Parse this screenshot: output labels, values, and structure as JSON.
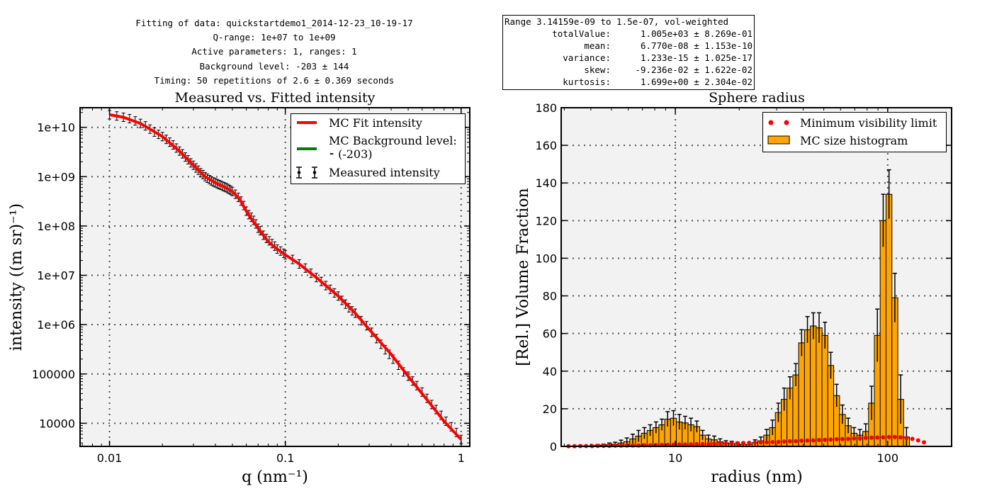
{
  "header": {
    "lines": [
      "Fitting of data: quickstartdemo1_2014-12-23_10-19-17",
      "Q-range: 1e+07 to 1e+09",
      "Active parameters: 1, ranges: 1",
      "Background level: -203 ± 144",
      "Timing: 50 repetitions of 2.6 ± 0.369 seconds"
    ]
  },
  "stats_box": {
    "title": "Range 3.14159e-09 to 1.5e-07, vol-weighted",
    "rows": [
      {
        "label": "totalValue:",
        "value": "1.005e+03 ± 8.269e-01"
      },
      {
        "label": "mean:",
        "value": "6.770e-08 ± 1.153e-10"
      },
      {
        "label": "variance:",
        "value": "1.233e-15 ± 1.025e-17"
      },
      {
        "label": "skew:",
        "value": "-9.236e-02 ± 1.622e-02"
      },
      {
        "label": "kurtosis:",
        "value": "1.699e+00 ± 2.304e-02"
      }
    ]
  },
  "colors": {
    "plot_bg": "#f2f2f2",
    "fit_line": "#ff0000",
    "background_line": "#008000",
    "bar_fill": "#ffa500",
    "visibility_dots": "#ff0000",
    "grid": "#555555"
  },
  "chart_data": [
    {
      "type": "line",
      "title": "Measured vs. Fitted intensity",
      "xlabel": "q (nm⁻¹)",
      "ylabel": "intensity ((m sr)⁻¹)",
      "xscale": "log",
      "yscale": "log",
      "xlim": [
        0.0068,
        1.12
      ],
      "ylim": [
        3400,
        25000000000
      ],
      "xticks": [
        0.01,
        0.1,
        1
      ],
      "xtick_labels": [
        "0.01",
        "0.1",
        "1"
      ],
      "yticks": [
        10000,
        100000,
        1000000,
        10000000,
        100000000,
        1000000000,
        10000000000
      ],
      "ytick_labels": [
        "10000",
        "100000",
        "1e+06",
        "1e+07",
        "1e+08",
        "1e+09",
        "1e+10"
      ],
      "grid": true,
      "legend_position": "top-right",
      "series": [
        {
          "name": "MC Fit intensity",
          "style": "line",
          "x": [
            0.01,
            0.012,
            0.015,
            0.02,
            0.025,
            0.03,
            0.035,
            0.04,
            0.045,
            0.05,
            0.055,
            0.06,
            0.065,
            0.07,
            0.075,
            0.08,
            0.09,
            0.1,
            0.12,
            0.15,
            0.2,
            0.25,
            0.3,
            0.4,
            0.5,
            0.6,
            0.7,
            0.8,
            0.9,
            1.0
          ],
          "y": [
            18000000000,
            16000000000,
            12000000000,
            6500000000,
            3300000000,
            1700000000,
            1000000000,
            750000000,
            620000000,
            500000000,
            350000000,
            200000000,
            130000000,
            90000000,
            65000000,
            48000000,
            34000000,
            26000000,
            17000000,
            9000000,
            3800000,
            1700000,
            800000,
            250000,
            90000,
            40000,
            20000,
            11000,
            7000,
            4700
          ]
        },
        {
          "name": "MC Background level: ⁃ (-203)",
          "style": "line",
          "x": [],
          "y": []
        },
        {
          "name": "Measured intensity",
          "style": "errorbar",
          "x": [
            0.01,
            0.011,
            0.012,
            0.013,
            0.014,
            0.015,
            0.016,
            0.017,
            0.018,
            0.019,
            0.02,
            0.021,
            0.022,
            0.023,
            0.024,
            0.025,
            0.026,
            0.027,
            0.028,
            0.029,
            0.03,
            0.031,
            0.032,
            0.033,
            0.034,
            0.035,
            0.036,
            0.037,
            0.038,
            0.039,
            0.04,
            0.041,
            0.042,
            0.043,
            0.044,
            0.045,
            0.046,
            0.047,
            0.048,
            0.049,
            0.05,
            0.052,
            0.054,
            0.056,
            0.058,
            0.06,
            0.062,
            0.064,
            0.066,
            0.068,
            0.07,
            0.072,
            0.075,
            0.078,
            0.081,
            0.084,
            0.087,
            0.09,
            0.094,
            0.098,
            0.1,
            0.11,
            0.12,
            0.13,
            0.14,
            0.15,
            0.16,
            0.17,
            0.18,
            0.19,
            0.2,
            0.21,
            0.22,
            0.23,
            0.24,
            0.25,
            0.27,
            0.29,
            0.31,
            0.33,
            0.35,
            0.37,
            0.39,
            0.41,
            0.44,
            0.47,
            0.5,
            0.53,
            0.56,
            0.6,
            0.64,
            0.68,
            0.72,
            0.77,
            0.82,
            0.88,
            0.94,
            1.0
          ],
          "y": [
            18000000000,
            17000000000,
            16000000000,
            15000000000,
            13500000000,
            12000000000,
            10700000000,
            9200000000,
            8000000000,
            7200000000,
            6500000000,
            5700000000,
            5000000000,
            4400000000,
            3800000000,
            3300000000,
            2900000000,
            2500000000,
            2200000000,
            1900000000,
            1700000000,
            1500000000,
            1350000000,
            1200000000,
            1100000000,
            1000000000,
            930000000,
            870000000,
            820000000,
            780000000,
            750000000,
            720000000,
            690000000,
            670000000,
            640000000,
            620000000,
            600000000,
            575000000,
            550000000,
            525000000,
            500000000,
            440000000,
            380000000,
            320000000,
            260000000,
            200000000,
            170000000,
            150000000,
            130000000,
            110000000,
            90000000,
            80000000,
            65000000,
            56000000,
            50000000,
            44000000,
            39000000,
            34000000,
            31000000,
            28000000,
            26000000,
            21000000,
            17000000,
            14000000,
            11000000,
            9000000,
            7500000,
            6200000,
            5200000,
            4400000,
            3800000,
            3100000,
            2600000,
            2200000,
            1900000,
            1700000,
            1200000,
            950000,
            700000,
            520000,
            400000,
            310000,
            250000,
            200000,
            150000,
            110000,
            90000,
            72000,
            58000,
            43000,
            32000,
            24000,
            19000,
            14500,
            11000,
            8500,
            6500,
            4700
          ]
        }
      ]
    },
    {
      "type": "bar",
      "title": "Sphere radius",
      "xlabel": "radius (nm)",
      "ylabel": "[Rel.] Volume Fraction",
      "xscale": "log",
      "xlim": [
        2.9,
        200
      ],
      "ylim": [
        0,
        180
      ],
      "xticks": [
        10,
        100
      ],
      "xtick_labels": [
        "10",
        "100"
      ],
      "yticks": [
        0,
        20,
        40,
        60,
        80,
        100,
        120,
        140,
        160,
        180
      ],
      "ytick_labels": [
        "0",
        "20",
        "40",
        "60",
        "80",
        "100",
        "120",
        "140",
        "160",
        "180"
      ],
      "grid": true,
      "legend_position": "top-right",
      "series": [
        {
          "name": "MC size histogram",
          "style": "bar",
          "x": [
            3.14,
            3.35,
            3.57,
            3.8,
            4.05,
            4.31,
            4.59,
            4.89,
            5.21,
            5.55,
            5.91,
            6.3,
            6.71,
            7.15,
            7.61,
            8.11,
            8.64,
            9.2,
            9.8,
            10.44,
            11.12,
            11.84,
            12.62,
            13.44,
            14.31,
            15.25,
            16.24,
            17.3,
            18.43,
            19.63,
            20.91,
            22.27,
            23.73,
            25.27,
            26.92,
            28.68,
            30.55,
            32.54,
            34.66,
            36.92,
            39.33,
            41.89,
            44.63,
            47.54,
            50.64,
            53.94,
            57.46,
            61.2,
            65.2,
            69.45,
            73.98,
            78.8,
            83.94,
            89.41,
            95.24,
            101.45,
            108.07,
            115.12,
            122.62,
            130.62,
            139.14
          ],
          "y": [
            0.0,
            0.2,
            0.3,
            0.2,
            0.3,
            0.5,
            0.6,
            1.0,
            1.2,
            1.8,
            2.5,
            4.0,
            5.5,
            7.0,
            8.5,
            10.0,
            11.5,
            14.5,
            15.0,
            13.0,
            12.5,
            11.5,
            10.5,
            6.0,
            4.0,
            3.5,
            2.5,
            1.8,
            1.5,
            1.2,
            1.0,
            1.0,
            2.0,
            3.0,
            6.0,
            10.0,
            18.0,
            25.0,
            31.0,
            38.0,
            55.0,
            62.0,
            64.0,
            63.0,
            59.0,
            43.0,
            27.0,
            17.0,
            11.0,
            7.0,
            6.0,
            8.0,
            23.0,
            59.0,
            120.0,
            134.0,
            79.0,
            25.0,
            5.0,
            0.0,
            0.0
          ],
          "err": [
            0.0,
            0.2,
            0.3,
            0.2,
            0.3,
            0.5,
            0.6,
            0.8,
            1.0,
            1.5,
            2.0,
            2.5,
            3.0,
            3.0,
            3.0,
            3.0,
            3.0,
            4.0,
            4.0,
            4.0,
            3.5,
            3.5,
            3.0,
            2.5,
            2.0,
            2.0,
            1.5,
            1.2,
            1.2,
            1.0,
            1.0,
            1.0,
            1.5,
            2.0,
            3.0,
            4.0,
            5.0,
            6.0,
            6.0,
            6.0,
            7.0,
            7.0,
            7.0,
            8.0,
            7.0,
            7.0,
            6.0,
            5.0,
            4.0,
            3.0,
            3.0,
            4.0,
            9.0,
            14.0,
            14.0,
            13.0,
            13.0,
            13.0,
            5.0,
            0.0,
            0.0
          ]
        },
        {
          "name": "Minimum visibility limit",
          "style": "dots",
          "x": [
            3.14,
            3.35,
            3.57,
            3.8,
            4.05,
            4.31,
            4.59,
            4.89,
            5.21,
            5.55,
            5.91,
            6.3,
            6.71,
            7.15,
            7.61,
            8.11,
            8.64,
            9.2,
            9.8,
            10.44,
            11.12,
            11.84,
            12.62,
            13.44,
            14.31,
            15.25,
            16.24,
            17.3,
            18.43,
            19.63,
            20.91,
            22.27,
            23.73,
            25.27,
            26.92,
            28.68,
            30.55,
            32.54,
            34.66,
            36.92,
            39.33,
            41.89,
            44.63,
            47.54,
            50.64,
            53.94,
            57.46,
            61.2,
            65.2,
            69.45,
            73.98,
            78.8,
            83.94,
            89.41,
            95.24,
            101.45,
            108.07,
            115.12,
            122.62,
            130.62,
            139.14,
            148.2
          ],
          "y": [
            0.1,
            0.1,
            0.2,
            0.2,
            0.2,
            0.3,
            0.3,
            0.3,
            0.4,
            0.4,
            0.5,
            0.5,
            0.5,
            0.6,
            0.6,
            0.7,
            0.8,
            0.8,
            0.9,
            1.0,
            1.0,
            1.1,
            1.2,
            1.2,
            1.3,
            1.4,
            1.5,
            1.5,
            1.6,
            1.7,
            1.8,
            1.9,
            2.0,
            2.1,
            2.2,
            2.3,
            2.4,
            2.6,
            2.7,
            2.8,
            3.0,
            3.1,
            3.2,
            3.4,
            3.5,
            3.6,
            3.8,
            3.9,
            4.0,
            4.2,
            4.3,
            4.5,
            4.6,
            4.7,
            4.8,
            5.0,
            5.0,
            4.8,
            4.5,
            4.0,
            3.2,
            2.2
          ]
        }
      ]
    }
  ]
}
